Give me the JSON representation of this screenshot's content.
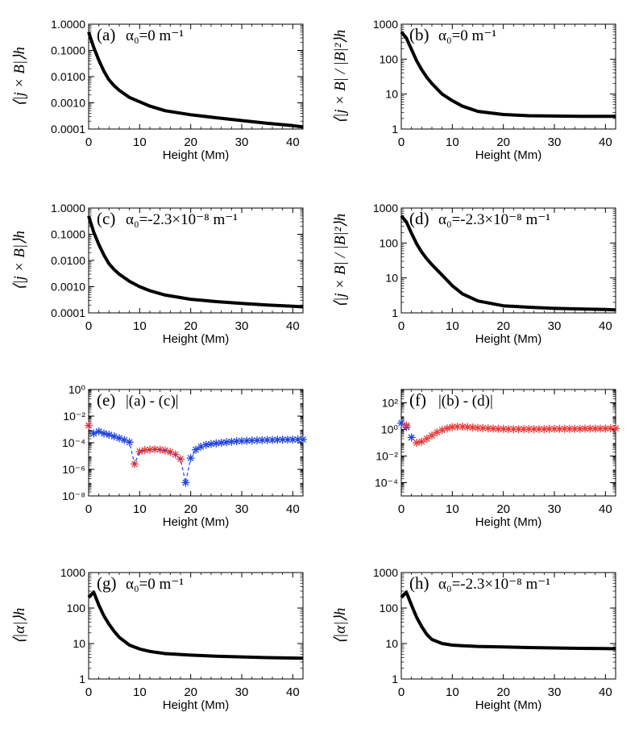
{
  "figure": {
    "panels": [
      {
        "id": "a",
        "label": "(a)",
        "label_math": "α₀=0 m⁻¹",
        "ylabel": "⟨|j × B|⟩h",
        "xlabel": "Height (Mm)",
        "chart_data": {
          "type": "line",
          "title": "",
          "xlabel": "Height (Mm)",
          "ylabel": "<|j x B|>_h",
          "yscale": "log",
          "xlim": [
            0,
            42
          ],
          "ylim": [
            0.0001,
            1.0
          ],
          "xticks": [
            0,
            10,
            20,
            30,
            40
          ],
          "xtick_labels": [
            "0",
            "10",
            "20",
            "30",
            "40"
          ],
          "yticks": [
            0.0001,
            0.001,
            0.01,
            0.1,
            1
          ],
          "ytick_labels": [
            "0.0001",
            "0.0010",
            "0.0100",
            "0.1000",
            "1.0000"
          ],
          "series": [
            {
              "name": "alpha0=0",
              "color": "#000000",
              "style": "solid",
              "x": [
                0,
                1,
                2,
                3,
                4,
                5,
                6,
                8,
                10,
                12,
                15,
                20,
                25,
                30,
                35,
                40,
                42
              ],
              "y": [
                0.5,
                0.13,
                0.042,
                0.016,
                0.0075,
                0.0045,
                0.003,
                0.0016,
                0.0011,
                0.00075,
                0.0005,
                0.00035,
                0.00027,
                0.00021,
                0.000165,
                0.000135,
                0.00012
              ]
            }
          ]
        }
      },
      {
        "id": "b",
        "label": "(b)",
        "label_math": "α₀=0 m⁻¹",
        "ylabel": "⟨|j × B| / |B|²⟩h",
        "xlabel": "Height (Mm)",
        "chart_data": {
          "type": "line",
          "title": "",
          "xlabel": "Height (Mm)",
          "ylabel": "<|j x B| / |B|^2>_h",
          "yscale": "log",
          "xlim": [
            0,
            42
          ],
          "ylim": [
            1,
            1000
          ],
          "xticks": [
            0,
            10,
            20,
            30,
            40
          ],
          "xtick_labels": [
            "0",
            "10",
            "20",
            "30",
            "40"
          ],
          "yticks": [
            1,
            10,
            100,
            1000
          ],
          "ytick_labels": [
            "1",
            "10",
            "100",
            "1000"
          ],
          "series": [
            {
              "name": "alpha0=0",
              "color": "#000000",
              "style": "solid",
              "x": [
                0,
                1,
                2,
                3,
                4,
                5,
                6,
                8,
                10,
                12,
                15,
                20,
                25,
                30,
                35,
                40,
                42
              ],
              "y": [
                600,
                400,
                190,
                90,
                50,
                30,
                20,
                10,
                6.5,
                4.5,
                3.2,
                2.6,
                2.4,
                2.35,
                2.3,
                2.3,
                2.3
              ]
            }
          ]
        }
      },
      {
        "id": "c",
        "label": "(c)",
        "label_math": "α₀=-2.3×10⁻⁸ m⁻¹",
        "ylabel": "⟨|j × B|⟩h",
        "xlabel": "Height (Mm)",
        "chart_data": {
          "type": "line",
          "title": "",
          "xlabel": "Height (Mm)",
          "ylabel": "<|j x B|>_h",
          "yscale": "log",
          "xlim": [
            0,
            42
          ],
          "ylim": [
            0.0001,
            1.0
          ],
          "xticks": [
            0,
            10,
            20,
            30,
            40
          ],
          "xtick_labels": [
            "0",
            "10",
            "20",
            "30",
            "40"
          ],
          "yticks": [
            0.0001,
            0.001,
            0.01,
            0.1,
            1
          ],
          "ytick_labels": [
            "0.0001",
            "0.0010",
            "0.0100",
            "0.1000",
            "1.0000"
          ],
          "series": [
            {
              "name": "alpha0=-2.3e-8",
              "color": "#000000",
              "style": "solid",
              "x": [
                0,
                1,
                2,
                3,
                4,
                5,
                6,
                8,
                10,
                12,
                15,
                20,
                25,
                30,
                35,
                40,
                42
              ],
              "y": [
                0.5,
                0.12,
                0.04,
                0.016,
                0.0075,
                0.0045,
                0.003,
                0.0016,
                0.001,
                0.0007,
                0.00048,
                0.00033,
                0.00027,
                0.00023,
                0.0002,
                0.00018,
                0.00017
              ]
            }
          ]
        }
      },
      {
        "id": "d",
        "label": "(d)",
        "label_math": "α₀=-2.3×10⁻⁸ m⁻¹",
        "ylabel": "⟨|j × B| / |B|²⟩h",
        "xlabel": "Height (Mm)",
        "chart_data": {
          "type": "line",
          "title": "",
          "xlabel": "Height (Mm)",
          "ylabel": "<|j x B| / |B|^2>_h",
          "yscale": "log",
          "xlim": [
            0,
            42
          ],
          "ylim": [
            1,
            1000
          ],
          "xticks": [
            0,
            10,
            20,
            30,
            40
          ],
          "xtick_labels": [
            "0",
            "10",
            "20",
            "30",
            "40"
          ],
          "yticks": [
            1,
            10,
            100,
            1000
          ],
          "ytick_labels": [
            "1",
            "10",
            "100",
            "1000"
          ],
          "series": [
            {
              "name": "alpha0=-2.3e-8",
              "color": "#000000",
              "style": "solid",
              "x": [
                0,
                1,
                2,
                3,
                4,
                5,
                6,
                8,
                10,
                12,
                15,
                20,
                25,
                30,
                35,
                40,
                42
              ],
              "y": [
                600,
                400,
                190,
                95,
                55,
                35,
                24,
                12,
                6,
                3.5,
                2.2,
                1.6,
                1.45,
                1.35,
                1.3,
                1.25,
                1.22
              ]
            }
          ]
        }
      },
      {
        "id": "e",
        "label": "(e)",
        "label_math": "|(a) - (c)|",
        "ylabel": "",
        "xlabel": "Height (Mm)",
        "chart_data": {
          "type": "scatter",
          "title": "",
          "xlabel": "Height (Mm)",
          "ylabel": "",
          "yscale": "log",
          "xlim": [
            0,
            42
          ],
          "ylim": [
            1e-08,
            1
          ],
          "xticks": [
            0,
            10,
            20,
            30,
            40
          ],
          "xtick_labels": [
            "0",
            "10",
            "20",
            "30",
            "40"
          ],
          "yticks": [
            1e-08,
            1e-06,
            0.0001,
            0.01,
            1
          ],
          "ytick_labels": [
            "10⁻⁸",
            "10⁻⁶",
            "10⁻⁴",
            "10⁻²",
            "10⁰"
          ],
          "series": [
            {
              "name": "positive difference",
              "color": "#2244dd",
              "marker": "*",
              "x": [
                1,
                2,
                3,
                4,
                5,
                6,
                7,
                8,
                19,
                20,
                21,
                22,
                23,
                24,
                25,
                26,
                27,
                28,
                29,
                30,
                31,
                32,
                33,
                34,
                35,
                36,
                37,
                38,
                39,
                40,
                41,
                42
              ],
              "y": [
                0.0005,
                0.0007,
                0.0005,
                0.0004,
                0.0003,
                0.00022,
                0.00016,
                0.00011,
                1e-07,
                7e-06,
                3e-05,
                5e-05,
                7e-05,
                8e-05,
                9e-05,
                0.0001,
                0.00011,
                0.00012,
                0.00013,
                0.000135,
                0.00014,
                0.000145,
                0.00015,
                0.000155,
                0.00016,
                0.00016,
                0.000165,
                0.00017,
                0.00017,
                0.000172,
                0.000175,
                0.000175
              ]
            },
            {
              "name": "negative difference",
              "color": "#e83a3a",
              "marker": "*",
              "x": [
                0,
                9,
                10,
                11,
                12,
                13,
                14,
                15,
                16,
                17,
                18
              ],
              "y": [
                0.002,
                2.5e-06,
                2.2e-05,
                2.8e-05,
                3e-05,
                3.2e-05,
                3e-05,
                2.6e-05,
                2e-05,
                1.3e-05,
                6e-06
              ]
            },
            {
              "name": "connecting",
              "color": "#2244dd",
              "style": "dashed",
              "x": [
                0,
                1,
                2,
                3,
                4,
                5,
                6,
                7,
                8,
                9,
                10,
                11,
                12,
                13,
                14,
                15,
                16,
                17,
                18,
                19,
                20,
                21,
                22
              ],
              "y": [
                0.002,
                0.0005,
                0.0007,
                0.0005,
                0.0004,
                0.0003,
                0.00022,
                0.00016,
                0.00011,
                2.5e-06,
                2.2e-05,
                2.8e-05,
                3e-05,
                3.2e-05,
                3e-05,
                2.6e-05,
                2e-05,
                1.3e-05,
                6e-06,
                1e-07,
                7e-06,
                3e-05,
                5e-05
              ]
            }
          ]
        }
      },
      {
        "id": "f",
        "label": "(f)",
        "label_math": "|(b) - (d)|",
        "ylabel": "",
        "xlabel": "Height (Mm)",
        "chart_data": {
          "type": "scatter",
          "title": "",
          "xlabel": "Height (Mm)",
          "ylabel": "",
          "yscale": "log",
          "xlim": [
            0,
            42
          ],
          "ylim": [
            1e-05,
            1000
          ],
          "xticks": [
            0,
            10,
            20,
            30,
            40
          ],
          "xtick_labels": [
            "0",
            "10",
            "20",
            "30",
            "40"
          ],
          "yticks": [
            0.0001,
            0.01,
            1,
            100
          ],
          "ytick_labels": [
            "10⁻⁴",
            "10⁻²",
            "10⁰",
            "10²"
          ],
          "series": [
            {
              "name": "positive difference",
              "color": "#2244dd",
              "marker": "*",
              "x": [
                0,
                1,
                2
              ],
              "y": [
                3,
                1.5,
                0.25
              ]
            },
            {
              "name": "negative difference",
              "color": "#e83a3a",
              "marker": "*",
              "x": [
                1,
                3,
                4,
                5,
                6,
                7,
                8,
                9,
                10,
                11,
                12,
                13,
                14,
                15,
                16,
                17,
                18,
                19,
                20,
                21,
                22,
                23,
                24,
                25,
                26,
                27,
                28,
                29,
                30,
                31,
                32,
                33,
                34,
                35,
                36,
                37,
                38,
                39,
                40,
                41,
                42
              ],
              "y": [
                2,
                0.1,
                0.12,
                0.2,
                0.35,
                0.6,
                0.9,
                1.2,
                1.5,
                1.6,
                1.6,
                1.5,
                1.4,
                1.3,
                1.25,
                1.2,
                1.15,
                1.1,
                1.1,
                1.05,
                1.05,
                1.05,
                1.05,
                1.05,
                1.05,
                1.05,
                1.05,
                1.1,
                1.1,
                1.1,
                1.1,
                1.1,
                1.1,
                1.1,
                1.15,
                1.15,
                1.15,
                1.15,
                1.15,
                1.2,
                1.2
              ]
            }
          ]
        }
      },
      {
        "id": "g",
        "label": "(g)",
        "label_math": "α₀=0 m⁻¹",
        "ylabel": "⟨|α|⟩h",
        "xlabel": "Height (Mm)",
        "chart_data": {
          "type": "line",
          "title": "",
          "xlabel": "Height (Mm)",
          "ylabel": "<|alpha|>_h",
          "yscale": "log",
          "xlim": [
            0,
            42
          ],
          "ylim": [
            1,
            1000
          ],
          "xticks": [
            0,
            10,
            20,
            30,
            40
          ],
          "xtick_labels": [
            "0",
            "10",
            "20",
            "30",
            "40"
          ],
          "yticks": [
            1,
            10,
            100,
            1000
          ],
          "ytick_labels": [
            "1",
            "10",
            "100",
            "1000"
          ],
          "series": [
            {
              "name": "alpha0=0",
              "color": "#000000",
              "style": "solid",
              "x": [
                0,
                1,
                2,
                3,
                4,
                5,
                6,
                8,
                10,
                12,
                15,
                20,
                25,
                30,
                35,
                40,
                42
              ],
              "y": [
                200,
                280,
                120,
                60,
                35,
                22,
                15,
                9,
                7,
                6,
                5.2,
                4.7,
                4.4,
                4.2,
                4.0,
                3.9,
                3.85
              ]
            }
          ]
        }
      },
      {
        "id": "h",
        "label": "(h)",
        "label_math": "α₀=-2.3×10⁻⁸ m⁻¹",
        "ylabel": "⟨|α|⟩h",
        "xlabel": "Height (Mm)",
        "chart_data": {
          "type": "line",
          "title": "",
          "xlabel": "Height (Mm)",
          "ylabel": "<|alpha|>_h",
          "yscale": "log",
          "xlim": [
            0,
            42
          ],
          "ylim": [
            1,
            1000
          ],
          "xticks": [
            0,
            10,
            20,
            30,
            40
          ],
          "xtick_labels": [
            "0",
            "10",
            "20",
            "30",
            "40"
          ],
          "yticks": [
            1,
            10,
            100,
            1000
          ],
          "ytick_labels": [
            "1",
            "10",
            "100",
            "1000"
          ],
          "series": [
            {
              "name": "alpha0=-2.3e-8",
              "color": "#000000",
              "style": "solid",
              "x": [
                0,
                1,
                2,
                3,
                4,
                5,
                6,
                8,
                10,
                12,
                15,
                20,
                25,
                30,
                35,
                40,
                42
              ],
              "y": [
                200,
                280,
                120,
                55,
                30,
                18,
                13,
                10,
                9,
                8.7,
                8.3,
                8.0,
                7.7,
                7.5,
                7.3,
                7.2,
                7.1
              ]
            }
          ]
        }
      }
    ]
  }
}
